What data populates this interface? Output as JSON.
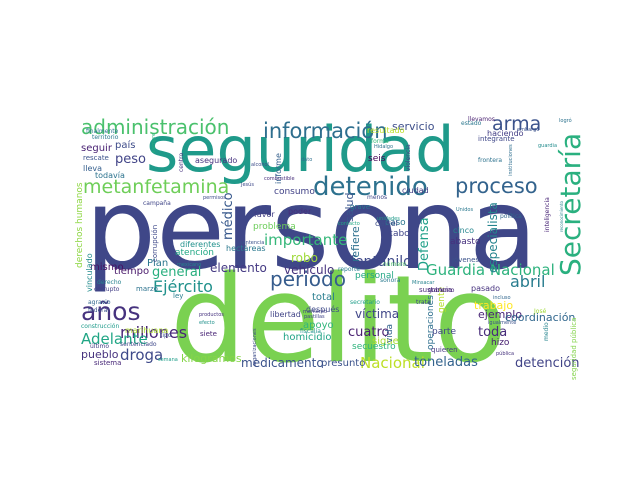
{
  "words": [
    {
      "text": "persona",
      "color": "#3f4788"
    },
    {
      "text": "delito",
      "color": "#7ad151"
    },
    {
      "text": "seguridad",
      "color": "#1f9a8a"
    },
    {
      "text": "Secretaría",
      "color": "#2ab07f"
    },
    {
      "text": "detenido",
      "color": "#2d718e"
    },
    {
      "text": "información",
      "color": "#2e6e8e"
    },
    {
      "text": "administración",
      "color": "#4ac16d"
    },
    {
      "text": "metanfetamina",
      "color": "#6ece58"
    },
    {
      "text": "proceso",
      "color": "#33638d"
    },
    {
      "text": "arma",
      "color": "#3b528b"
    },
    {
      "text": "años",
      "color": "#46327e"
    },
    {
      "text": "periodo",
      "color": "#365c8d"
    },
    {
      "text": "Ejército",
      "color": "#21918c"
    },
    {
      "text": "millones",
      "color": "#482677"
    },
    {
      "text": "Guardia Nacional",
      "color": "#2db27d"
    },
    {
      "text": "abril",
      "color": "#287c8e"
    },
    {
      "text": "Adelante",
      "color": "#21a685"
    },
    {
      "text": "droga",
      "color": "#3e4989"
    },
    {
      "text": "Nacional",
      "color": "#bddf26"
    },
    {
      "text": "toneladas",
      "color": "#33638d"
    },
    {
      "text": "detención",
      "color": "#414487"
    },
    {
      "text": "medicamento",
      "color": "#3b528b"
    },
    {
      "text": "importante",
      "color": "#35b779"
    },
    {
      "text": "fentanilo",
      "color": "#3e4989"
    },
    {
      "text": "peso",
      "color": "#414487"
    },
    {
      "text": "general",
      "color": "#29af7f"
    },
    {
      "text": "elemento",
      "color": "#443983"
    },
    {
      "text": "vehículo",
      "color": "#46337e"
    },
    {
      "text": "víctima",
      "color": "#404688"
    },
    {
      "text": "robo",
      "color": "#9fda3a"
    },
    {
      "text": "médico",
      "color": "#38598c"
    },
    {
      "text": "cuatro",
      "color": "#481f70"
    },
    {
      "text": "Defensa",
      "color": "#1fa088"
    },
    {
      "text": "toda",
      "color": "#472c7a"
    },
    {
      "text": "especialista",
      "color": "#25848e"
    },
    {
      "text": "pueblo",
      "color": "#46327e"
    },
    {
      "text": "salud",
      "color": "#39558c"
    },
    {
      "text": "ejemplo",
      "color": "#482475"
    },
    {
      "text": "trabajo",
      "color": "#fde725"
    },
    {
      "text": "coordinación",
      "color": "#31678e"
    },
    {
      "text": "servicio",
      "color": "#3d4e8a"
    },
    {
      "text": "refiere",
      "color": "#2d708e"
    },
    {
      "text": "seguir",
      "color": "#482173"
    },
    {
      "text": "país",
      "color": "#3e4c8a"
    },
    {
      "text": "mismo",
      "color": "#471164"
    },
    {
      "text": "tiempo",
      "color": "#48186a"
    },
    {
      "text": "Plan",
      "color": "#2a768e"
    },
    {
      "text": "homicidio",
      "color": "#20a386"
    },
    {
      "text": "apoyo",
      "color": "#31b57b"
    },
    {
      "text": "total",
      "color": "#287d8e"
    },
    {
      "text": "sigue",
      "color": "#aadc32"
    },
    {
      "text": "presunto",
      "color": "#3b528b"
    },
    {
      "text": "kilogramos",
      "color": "#86d549"
    },
    {
      "text": "consumo",
      "color": "#414287"
    },
    {
      "text": "problema",
      "color": "#6ccd5a"
    },
    {
      "text": "atención",
      "color": "#22a884"
    },
    {
      "text": "seis",
      "color": "#440154"
    },
    {
      "text": "parte",
      "color": "#3f4788"
    },
    {
      "text": "caso",
      "color": "#2a768e"
    },
    {
      "text": "cabo",
      "color": "#404688"
    },
    {
      "text": "vida",
      "color": "#33638d"
    },
    {
      "text": "operaciones",
      "color": "#2e6f8e"
    },
    {
      "text": "gente",
      "color": "#b5de2b"
    },
    {
      "text": "abasto",
      "color": "#46307e"
    },
    {
      "text": "hizo",
      "color": "#482071"
    },
    {
      "text": "secuestro",
      "color": "#2eb37c"
    },
    {
      "text": "cártel",
      "color": "#3d4d8a"
    },
    {
      "text": "cinco",
      "color": "#25858e"
    },
    {
      "text": "pasado",
      "color": "#46327e"
    },
    {
      "text": "ciudad",
      "color": "#433e85"
    },
    {
      "text": "personal",
      "color": "#22a785"
    },
    {
      "text": "poder",
      "color": "#472d7b"
    },
    {
      "text": "favor",
      "color": "#423f85"
    },
    {
      "text": "después",
      "color": "#3e4a89"
    },
    {
      "text": "lleva",
      "color": "#355f8d"
    },
    {
      "text": "todavía",
      "color": "#2c738e"
    },
    {
      "text": "rescate",
      "color": "#3b528b"
    },
    {
      "text": "asegurado",
      "color": "#46327e"
    },
    {
      "text": "grave",
      "color": "#2a788e"
    },
    {
      "text": "vinculado",
      "color": "#228b8d"
    },
    {
      "text": "derechos humanos",
      "color": "#8fd744"
    },
    {
      "text": "sistema",
      "color": "#482878"
    },
    {
      "text": "marihuana",
      "color": "#addc30"
    },
    {
      "text": "construcción",
      "color": "#1e9b8a"
    },
    {
      "text": "agravio",
      "color": "#31678e"
    },
    {
      "text": "federal",
      "color": "#3b518b"
    },
    {
      "text": "último",
      "color": "#433d84"
    },
    {
      "text": "sentenciado",
      "color": "#3f4889"
    },
    {
      "text": "fiscalía",
      "color": "#21918c"
    },
    {
      "text": "libertad",
      "color": "#414487"
    },
    {
      "text": "marzo",
      "color": "#2c728e"
    },
    {
      "text": "ley",
      "color": "#287c8e"
    },
    {
      "text": "tipo",
      "color": "#3b528b"
    },
    {
      "text": "siete",
      "color": "#482475"
    },
    {
      "text": "quieren",
      "color": "#453781"
    },
    {
      "text": "número",
      "color": "#52c569"
    },
    {
      "text": "sonora",
      "color": "#29798e"
    },
    {
      "text": "secretario",
      "color": "#1f9e89"
    },
    {
      "text": "gobierno",
      "color": "#482677"
    },
    {
      "text": "igualmente",
      "color": "#3b528b"
    },
    {
      "text": "incluso",
      "color": "#31678e"
    },
    {
      "text": "pública",
      "color": "#46337e"
    },
    {
      "text": "resultado",
      "color": "#bddf26"
    },
    {
      "text": "haciendo",
      "color": "#433e85"
    },
    {
      "text": "llevamos",
      "color": "#481f70"
    },
    {
      "text": "frontera",
      "color": "#2c728e"
    },
    {
      "text": "mexicano",
      "color": "#25838e"
    },
    {
      "text": "jóvenes",
      "color": "#3b528b"
    },
    {
      "text": "campaña",
      "color": "#404688"
    },
    {
      "text": "centro",
      "color": "#46327e"
    },
    {
      "text": "corrupción",
      "color": "#3e4989"
    },
    {
      "text": "reporte",
      "color": "#287d8e"
    },
    {
      "text": "seguridad pública",
      "color": "#84d44b"
    },
    {
      "text": "integrante",
      "color": "#3f4788"
    },
    {
      "text": "política",
      "color": "#31678e"
    },
    {
      "text": "diferentes",
      "color": "#21918c"
    },
    {
      "text": "hectáreas",
      "color": "#2a788e"
    },
    {
      "text": "sentencia",
      "color": "#3b528b"
    },
    {
      "text": "informe",
      "color": "#35608d"
    },
    {
      "text": "territorio",
      "color": "#29798e"
    },
    {
      "text": "finalmente",
      "color": "#2c738e"
    },
    {
      "text": "menos",
      "color": "#3f4788"
    },
    {
      "text": "unidades",
      "color": "#1f9a8a"
    },
    {
      "text": "contacto",
      "color": "#22a785"
    },
    {
      "text": "violencia",
      "color": "#433e85"
    },
    {
      "text": "trata",
      "color": "#3e4a89"
    },
    {
      "text": "inteligencia",
      "color": "#482576"
    },
    {
      "text": "efecto",
      "color": "#21918c"
    },
    {
      "text": "semana",
      "color": "#1f9e89"
    },
    {
      "text": "logró",
      "color": "#2c728e"
    },
    {
      "text": "guardia",
      "color": "#228c8d"
    },
    {
      "text": "estado",
      "color": "#2a778e"
    },
    {
      "text": "sustancia",
      "color": "#472a7a"
    },
    {
      "text": "Unidos",
      "color": "#2a788e"
    },
    {
      "text": "Minsacar",
      "color": "#26828e"
    },
    {
      "text": "permisos",
      "color": "#3e4c8a"
    },
    {
      "text": "alcohol",
      "color": "#3d4e8a"
    },
    {
      "text": "combustible",
      "color": "#472d7b"
    },
    {
      "text": "dato",
      "color": "#2d708e"
    },
    {
      "text": "forma",
      "color": "#35b779"
    },
    {
      "text": "Hidalgo",
      "color": "#2c738e"
    },
    {
      "text": "embargo",
      "color": "#3b528b"
    },
    {
      "text": "instituciones",
      "color": "#2e6e8e"
    },
    {
      "text": "medio",
      "color": "#25848e"
    },
    {
      "text": "José",
      "color": "#a0da39"
    },
    {
      "text": "reconocimiento",
      "color": "#26828e"
    },
    {
      "text": "Jesús",
      "color": "#3e4989"
    },
    {
      "text": "pastillas",
      "color": "#404588"
    },
    {
      "text": "organizaciones",
      "color": "#3e4c8a"
    },
    {
      "text": "momento",
      "color": "#433d84"
    },
    {
      "text": "corrupto",
      "color": "#433e85"
    },
    {
      "text": "siempre",
      "color": "#2ab07f"
    },
    {
      "text": "derecho",
      "color": "#26828e"
    },
    {
      "text": "productos",
      "color": "#46327e"
    }
  ]
}
